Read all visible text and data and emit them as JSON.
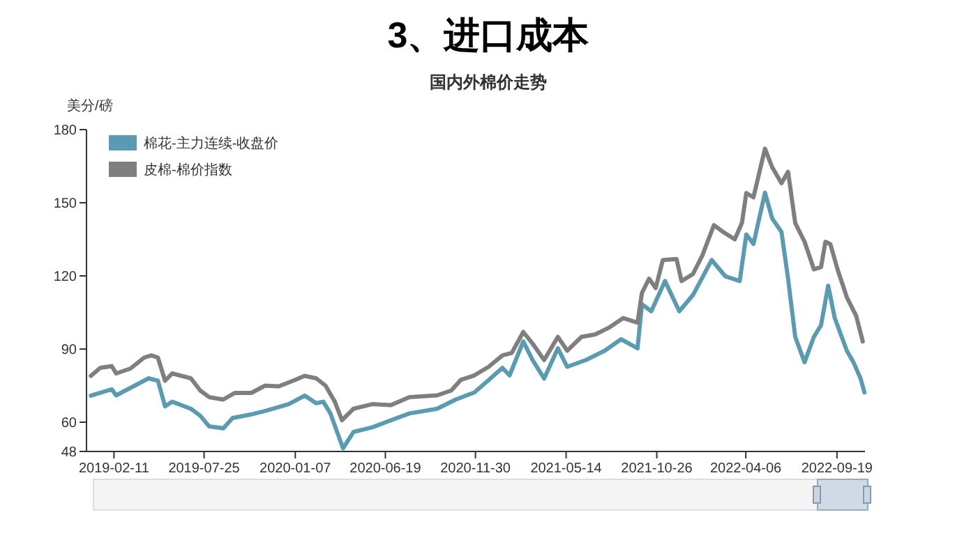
{
  "chart_data": {
    "type": "line",
    "title": "3、进口成本",
    "subtitle": "国内外棉价走势",
    "ylabel": "美分/磅",
    "xlim": [
      "2018-12-23",
      "2022-11-09"
    ],
    "xticks": [
      "2019-02-11",
      "2019-07-25",
      "2020-01-07",
      "2020-06-19",
      "2020-11-30",
      "2021-05-14",
      "2021-10-26",
      "2022-04-06",
      "2022-09-19"
    ],
    "ylim": [
      48,
      180
    ],
    "yticks": [
      48,
      60,
      90,
      120,
      150,
      180
    ],
    "grid": false,
    "legend": "top left",
    "marker": "none",
    "line_style": "solid",
    "series": [
      {
        "name": "棉花-主力连续-收盘价",
        "color": "#5b9bb2",
        "x": [
          "2018-12-31",
          "2019-02-07",
          "2019-02-15",
          "2019-04-15",
          "2019-05-02",
          "2019-05-15",
          "2019-05-28",
          "2019-07-01",
          "2019-07-18",
          "2019-08-03",
          "2019-08-29",
          "2019-09-15",
          "2019-10-19",
          "2019-11-13",
          "2019-12-26",
          "2020-01-24",
          "2020-02-14",
          "2020-02-27",
          "2020-03-11",
          "2020-04-03",
          "2020-04-22",
          "2020-05-26",
          "2020-06-29",
          "2020-08-02",
          "2020-09-21",
          "2020-10-25",
          "2020-11-28",
          "2020-12-24",
          "2021-01-18",
          "2021-01-31",
          "2021-02-25",
          "2021-03-14",
          "2021-04-04",
          "2021-04-29",
          "2021-05-16",
          "2021-06-19",
          "2021-07-23",
          "2021-08-22",
          "2021-09-21",
          "2021-09-29",
          "2021-10-16",
          "2021-11-10",
          "2021-12-06",
          "2021-12-31",
          "2022-02-03",
          "2022-02-28",
          "2022-03-26",
          "2022-04-07",
          "2022-04-20",
          "2022-05-11",
          "2022-05-24",
          "2022-06-10",
          "2022-06-22",
          "2022-07-05",
          "2022-07-22",
          "2022-08-08",
          "2022-08-21",
          "2022-09-03",
          "2022-09-15",
          "2022-10-07",
          "2022-10-19",
          "2022-11-01",
          "2022-11-08"
        ],
        "values": [
          70.9,
          73.5,
          71,
          78,
          77,
          66.5,
          68.4,
          65.5,
          62.7,
          58.3,
          57.5,
          61.7,
          63.2,
          64.6,
          67.4,
          70.9,
          67.8,
          68.4,
          63.6,
          49.3,
          56,
          57.9,
          60.8,
          63.6,
          65.5,
          69.3,
          72.2,
          77.3,
          82.3,
          79.2,
          93.1,
          85.5,
          77.9,
          90.3,
          82.7,
          85.5,
          89.3,
          94,
          90.3,
          108.4,
          105.5,
          117.9,
          105.5,
          112.2,
          126.5,
          119.8,
          117.9,
          137,
          133.1,
          154.1,
          143.6,
          138,
          118.9,
          95,
          84.6,
          95,
          99.8,
          116,
          102.7,
          89.3,
          84.6,
          77.9,
          72.2
        ]
      },
      {
        "name": "皮棉-棉价指数",
        "color": "#7f7f7f",
        "x": [
          "2018-12-31",
          "2019-01-17",
          "2019-02-07",
          "2019-02-15",
          "2019-03-13",
          "2019-04-07",
          "2019-04-20",
          "2019-05-02",
          "2019-05-15",
          "2019-05-28",
          "2019-07-01",
          "2019-07-18",
          "2019-08-03",
          "2019-08-29",
          "2019-09-19",
          "2019-10-19",
          "2019-11-13",
          "2019-12-08",
          "2020-01-03",
          "2020-01-24",
          "2020-02-14",
          "2020-03-02",
          "2020-03-19",
          "2020-04-01",
          "2020-04-22",
          "2020-05-26",
          "2020-06-29",
          "2020-08-02",
          "2020-09-21",
          "2020-10-17",
          "2020-11-03",
          "2020-11-28",
          "2020-12-24",
          "2021-01-18",
          "2021-02-04",
          "2021-02-25",
          "2021-03-14",
          "2021-04-04",
          "2021-04-29",
          "2021-05-16",
          "2021-06-11",
          "2021-07-06",
          "2021-08-01",
          "2021-08-26",
          "2021-09-21",
          "2021-09-29",
          "2021-10-12",
          "2021-10-24",
          "2021-11-06",
          "2021-12-01",
          "2021-12-10",
          "2021-12-31",
          "2022-01-17",
          "2022-02-07",
          "2022-02-24",
          "2022-03-17",
          "2022-03-30",
          "2022-04-07",
          "2022-04-20",
          "2022-04-29",
          "2022-05-11",
          "2022-05-24",
          "2022-06-10",
          "2022-06-22",
          "2022-07-05",
          "2022-07-22",
          "2022-08-08",
          "2022-08-21",
          "2022-08-29",
          "2022-09-07",
          "2022-09-20",
          "2022-10-07",
          "2022-10-24",
          "2022-11-05"
        ],
        "values": [
          79,
          82.3,
          83,
          80,
          82,
          86.5,
          87.4,
          86.5,
          77,
          80,
          78,
          73,
          70.3,
          69.3,
          72,
          72,
          75,
          74.7,
          77,
          79,
          78,
          75,
          68.4,
          60.8,
          65.5,
          67.4,
          67,
          70.3,
          71,
          73,
          77.3,
          79.2,
          82.7,
          87.4,
          88.4,
          97,
          92.2,
          85.5,
          95,
          89.3,
          95,
          96,
          98.9,
          102.7,
          100.8,
          113,
          118.9,
          115,
          126.5,
          126.9,
          117.9,
          120.8,
          128.4,
          140.8,
          138,
          135,
          141.7,
          154,
          152.2,
          160.8,
          172.2,
          164.6,
          158,
          162.7,
          141.7,
          134,
          122.7,
          123.6,
          134,
          133,
          122.7,
          111.2,
          103.6,
          93.1
        ]
      }
    ]
  }
}
